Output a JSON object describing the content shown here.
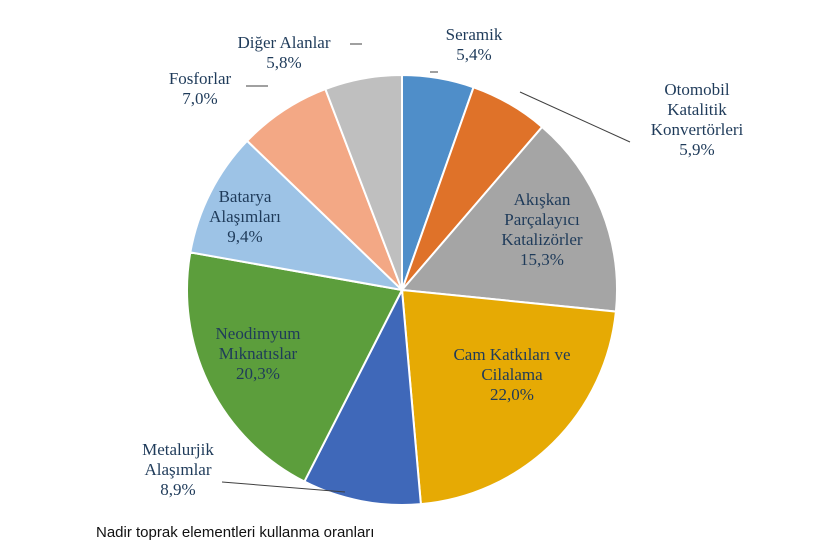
{
  "chart_data": {
    "type": "pie",
    "caption": "Nadir toprak elementleri kullanma oranları",
    "slices": [
      {
        "label": [
          "Seramik"
        ],
        "value": 5.4,
        "value_text": "5,4%",
        "color": "#4f8ec9"
      },
      {
        "label": [
          "Otomobil",
          "Katalitik",
          "Konvertörleri"
        ],
        "value": 5.9,
        "value_text": "5,9%",
        "color": "#df7229"
      },
      {
        "label": [
          "Akışkan",
          "Parçalayıcı",
          "Katalizörler"
        ],
        "value": 15.3,
        "value_text": "15,3%",
        "color": "#a5a5a5"
      },
      {
        "label": [
          "Cam Katkıları ve",
          "Cilalama"
        ],
        "value": 22.0,
        "value_text": "22,0%",
        "color": "#e6aa04"
      },
      {
        "label": [
          "Metalurjik",
          "Alaşımlar"
        ],
        "value": 8.9,
        "value_text": "8,9%",
        "color": "#3f68b9"
      },
      {
        "label": [
          "Neodimyum",
          "Mıknatıslar"
        ],
        "value": 20.3,
        "value_text": "20,3%",
        "color": "#5c9e3c"
      },
      {
        "label": [
          "Batarya",
          "Alaşımları"
        ],
        "value": 9.4,
        "value_text": "9,4%",
        "color": "#9dc3e6"
      },
      {
        "label": [
          "Fosforlar"
        ],
        "value": 7.0,
        "value_text": "7,0%",
        "color": "#f3a885"
      },
      {
        "label": [
          "Diğer Alanlar"
        ],
        "value": 5.8,
        "value_text": "5,8%",
        "color": "#bfbfbf"
      }
    ]
  }
}
